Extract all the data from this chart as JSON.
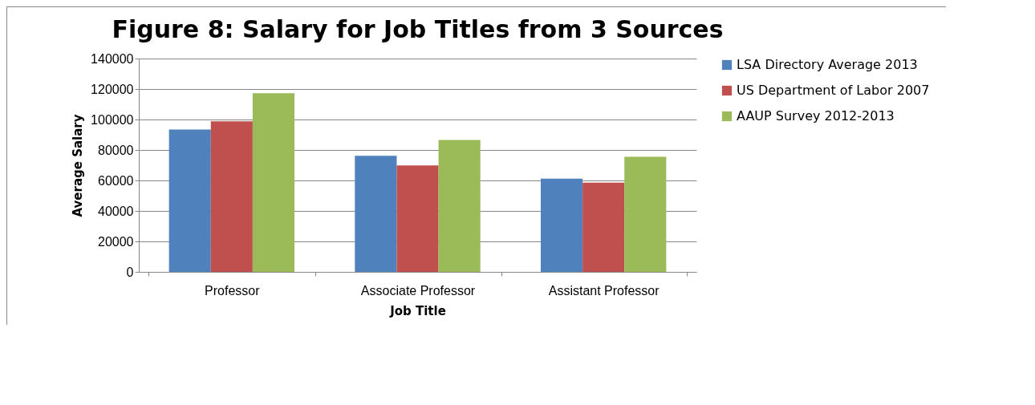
{
  "chart_data": {
    "type": "bar",
    "title": "Figure 8: Salary for Job Titles from 3 Sources",
    "xlabel": "Job Title",
    "ylabel": "Average Salary",
    "categories": [
      "Professor",
      "Associate Professor",
      "Assistant Professor"
    ],
    "series": [
      {
        "name": "LSA Directory Average 2013",
        "color": "#4f81bd",
        "values": [
          93400,
          76200,
          61200
        ]
      },
      {
        "name": "US Department of Labor 2007",
        "color": "#c0504d",
        "values": [
          98800,
          69900,
          58600
        ]
      },
      {
        "name": "AAUP Survey 2012-2013",
        "color": "#9bbb59",
        "values": [
          117200,
          86600,
          75500
        ]
      }
    ],
    "ylim": [
      0,
      140000
    ],
    "yticks": [
      0,
      20000,
      40000,
      60000,
      80000,
      100000,
      120000,
      140000
    ],
    "grid": "y",
    "legend": "right"
  }
}
